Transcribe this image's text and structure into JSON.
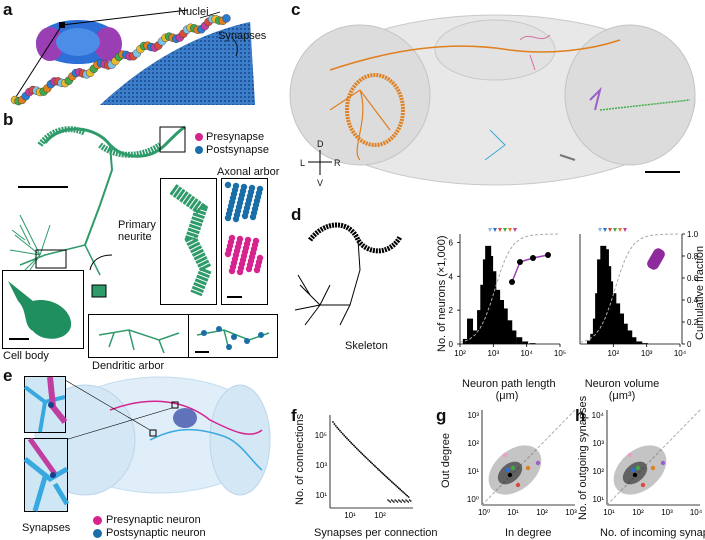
{
  "panels": {
    "a": {
      "letter": "a",
      "nuclei_label": "Nuclei",
      "synapses_label": "Synapses"
    },
    "b": {
      "letter": "b",
      "presynapse": "Presynapse",
      "postsynapse": "Postsynapse",
      "axonal_arbor": "Axonal arbor",
      "primary_neurite_1": "Primary",
      "primary_neurite_2": "neurite",
      "cell_body": "Cell body",
      "dendritic_arbor": "Dendritic arbor"
    },
    "c": {
      "letter": "c",
      "axis_d": "D",
      "axis_v": "V",
      "axis_l": "L",
      "axis_r": "R"
    },
    "d": {
      "letter": "d",
      "skeleton": "Skeleton",
      "ylabel": "No. of neurons (×1,000)",
      "ylabel_right": "Cumulative fraction",
      "xlabel1_line1": "Neuron path length",
      "xlabel1_line2": "(μm)",
      "xlabel2_line1": "Neuron volume",
      "xlabel2_line2": "(μm³)",
      "yticks": [
        "0",
        "2",
        "4",
        "6"
      ],
      "yticks_right": [
        "0",
        "0.2",
        "0.4",
        "0.6",
        "0.8",
        "1.0"
      ],
      "xticks1": [
        "10²",
        "10³",
        "10⁴",
        "10⁵"
      ],
      "xticks2": [
        "10²",
        "10³",
        "10⁴"
      ]
    },
    "e": {
      "letter": "e",
      "synapses": "Synapses",
      "pre_neuron": "Presynaptic neuron",
      "post_neuron": "Postsynaptic neuron"
    },
    "f": {
      "letter": "f",
      "ylabel": "No. of connections",
      "xlabel": "Synapses per  connection",
      "yticks": [
        "10⁵",
        "10³",
        "10¹"
      ],
      "xtick1": "10¹",
      "xtick2": "10²"
    },
    "g": {
      "letter": "g",
      "ylabel": "Out degree",
      "xlabel": "In degree",
      "yticks": [
        "10³",
        "10²",
        "10¹",
        "10⁰"
      ],
      "xticks": [
        "10⁰",
        "10¹",
        "10²",
        "10³"
      ]
    },
    "h": {
      "letter": "h",
      "ylabel": "No. of outgoing synapses",
      "xlabel": "No. of incoming synapses",
      "yticks": [
        "10⁴",
        "10³",
        "10²",
        "10¹"
      ],
      "xticks": [
        "10¹",
        "10²",
        "10³",
        "10⁴"
      ]
    }
  },
  "colors": {
    "pre": "#d6238e",
    "post": "#1a6ea8",
    "neuron_green": "#2f9a6a",
    "black": "#000000"
  },
  "chart_data": [
    {
      "type": "bar",
      "panel": "d-left",
      "xlabel": "Neuron path length (μm)",
      "ylabel": "No. of neurons (×1,000)",
      "xscale": "log",
      "xlim": [
        100,
        100000
      ],
      "ylim": [
        0,
        6.5
      ],
      "x": [
        150,
        200,
        300,
        400,
        500,
        600,
        700,
        800,
        1000,
        1300,
        1700,
        2200,
        3000,
        4000,
        6000,
        9000,
        15000
      ],
      "values": [
        0.3,
        1.5,
        0.8,
        2.0,
        3.5,
        5.0,
        5.8,
        5.2,
        4.3,
        3.2,
        2.6,
        2.1,
        1.4,
        0.8,
        0.4,
        0.15,
        0.05
      ]
    },
    {
      "type": "bar",
      "panel": "d-right",
      "xlabel": "Neuron volume (μm³)",
      "ylabel": "No. of neurons (×1,000)",
      "xscale": "log",
      "xlim": [
        10,
        10000
      ],
      "ylim": [
        0,
        6.5
      ],
      "x": [
        20,
        25,
        30,
        35,
        40,
        50,
        60,
        70,
        80,
        100,
        130,
        170,
        220,
        300,
        400,
        600,
        900
      ],
      "values": [
        0.2,
        0.6,
        1.5,
        3.0,
        5.0,
        5.8,
        5.6,
        4.6,
        3.7,
        3.0,
        2.4,
        1.8,
        1.2,
        0.8,
        0.4,
        0.15,
        0.05
      ]
    }
  ]
}
